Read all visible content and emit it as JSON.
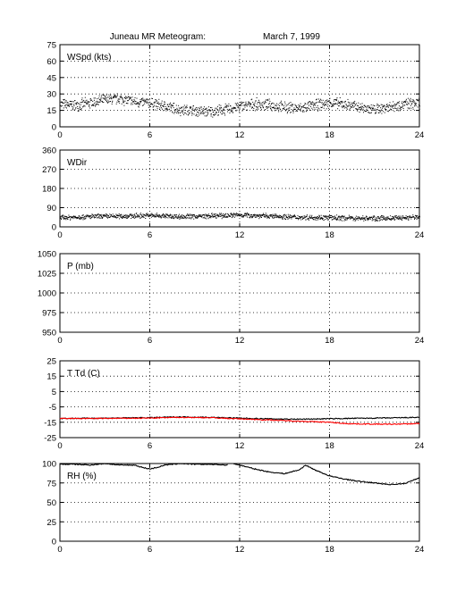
{
  "title_left": "Juneau MR Meteogram:",
  "title_right": "March  7, 1999",
  "chart_data": [
    {
      "type": "scatter",
      "label": "WSpd (kts)",
      "xlim": [
        0,
        24
      ],
      "xticks": [
        0,
        6,
        12,
        18,
        24
      ],
      "ylim": [
        0,
        75
      ],
      "yticks": [
        0,
        15,
        30,
        45,
        60,
        75
      ],
      "grid": true,
      "color": "#000000",
      "series": [
        {
          "hour": [
            0,
            1,
            2,
            3,
            4,
            5,
            6,
            7,
            8,
            9,
            10,
            11,
            12,
            13,
            14,
            15,
            16,
            17,
            18,
            19,
            20,
            21,
            22,
            23,
            24
          ],
          "value": [
            21,
            20,
            22,
            25,
            26,
            23,
            22,
            19,
            16,
            15,
            14,
            16,
            19,
            21,
            20,
            18,
            17,
            20,
            22,
            21,
            18,
            16,
            19,
            21,
            22
          ],
          "spread": 6
        }
      ]
    },
    {
      "type": "scatter",
      "label": "WDir",
      "xlim": [
        0,
        24
      ],
      "xticks": [
        0,
        6,
        12,
        18,
        24
      ],
      "ylim": [
        0,
        360
      ],
      "yticks": [
        0,
        90,
        180,
        270,
        360
      ],
      "grid": true,
      "color": "#000000",
      "series": [
        {
          "hour": [
            0,
            2,
            4,
            6,
            8,
            10,
            12,
            14,
            16,
            18,
            20,
            22,
            24
          ],
          "value": [
            45,
            50,
            52,
            55,
            50,
            52,
            58,
            52,
            47,
            45,
            42,
            42,
            48
          ],
          "spread": 14
        }
      ]
    },
    {
      "type": "line",
      "label": "P (mb)",
      "xlim": [
        0,
        24
      ],
      "xticks": [
        0,
        6,
        12,
        18,
        24
      ],
      "ylim": [
        950,
        1050
      ],
      "yticks": [
        950,
        975,
        1000,
        1025,
        1050
      ],
      "grid": true,
      "series": []
    },
    {
      "type": "line",
      "label": "T Td (C)",
      "xlim": [
        0,
        24
      ],
      "xticks": [
        0,
        6,
        12,
        18,
        24
      ],
      "ylim": [
        -25,
        25
      ],
      "yticks": [
        -25,
        -15,
        -5,
        5,
        15,
        25
      ],
      "grid": true,
      "series": [
        {
          "color": "#000000",
          "hour": [
            0,
            3,
            6,
            8,
            10,
            12,
            14,
            16,
            18,
            20,
            22,
            24
          ],
          "value": [
            -12.5,
            -12.3,
            -12.0,
            -11.5,
            -11.8,
            -12.3,
            -12.8,
            -13.0,
            -12.7,
            -12.4,
            -12.2,
            -11.8
          ]
        },
        {
          "color": "#ff0000",
          "hour": [
            0,
            3,
            6,
            8,
            10,
            12,
            14,
            16,
            18,
            19,
            20,
            22,
            23.5,
            24
          ],
          "value": [
            -12.6,
            -12.5,
            -12.3,
            -11.8,
            -12.0,
            -12.8,
            -13.5,
            -14.3,
            -15.0,
            -15.8,
            -16.1,
            -16.3,
            -16.0,
            -15.7
          ]
        }
      ]
    },
    {
      "type": "line",
      "label": "RH (%)",
      "xlim": [
        0,
        24
      ],
      "xticks": [
        0,
        6,
        12,
        18,
        24
      ],
      "ylim": [
        0,
        100
      ],
      "yticks": [
        0,
        25,
        50,
        75,
        100
      ],
      "grid": true,
      "series": [
        {
          "color": "#000000",
          "hour": [
            0,
            1,
            2,
            3,
            4,
            5,
            5.5,
            6,
            6.5,
            7,
            8,
            9,
            10,
            11.2
          ],
          "value": [
            99,
            99,
            98,
            100,
            98,
            98,
            95,
            93,
            95,
            98,
            100,
            99,
            99,
            98
          ]
        },
        {
          "color": "#000000",
          "hour": [
            11.6,
            12,
            13,
            14,
            15,
            16,
            16.4,
            17,
            18,
            19,
            20,
            21,
            22,
            23,
            24
          ],
          "value": [
            100,
            98,
            93,
            89,
            87,
            92,
            98,
            92,
            84,
            80,
            77,
            75,
            73,
            74,
            82
          ]
        }
      ]
    }
  ]
}
